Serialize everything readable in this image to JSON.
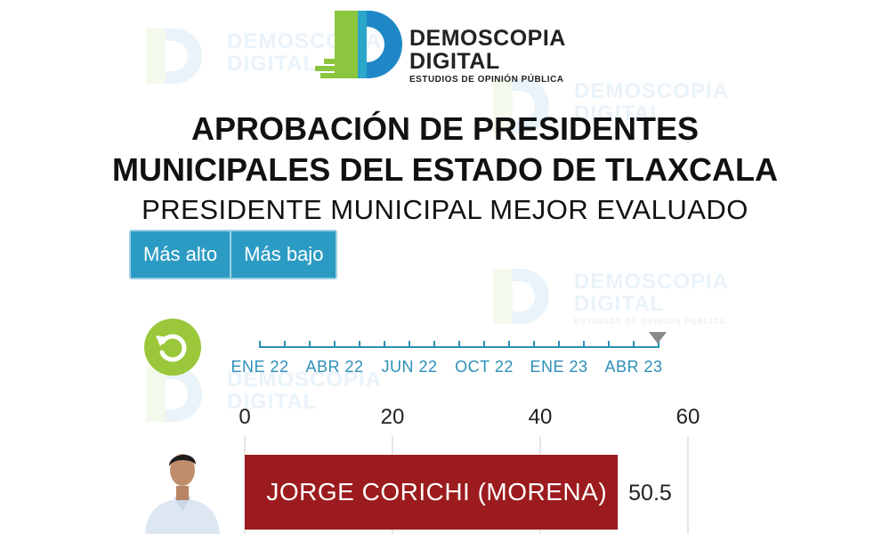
{
  "watermark": {
    "line1": "DEMOSCOPIA",
    "line2": "DIGITAL",
    "line3": "ESTUDIOS DE OPINIÓN PÚBLICA"
  },
  "logo": {
    "line1": "DEMOSCOPIA",
    "line2": "DIGITAL",
    "subtitle": "ESTUDIOS DE OPINIÓN PÚBLICA",
    "colors": {
      "green": "#8cc63f",
      "blue": "#1e88c7",
      "teal": "#2aa7c9"
    }
  },
  "title": {
    "line1": "APROBACIÓN DE PRESIDENTES",
    "line2": "MUNICIPALES DEL ESTADO DE TLAXCALA"
  },
  "subtitle": "PRESIDENTE MUNICIPAL MEJOR EVALUADO",
  "controls": {
    "buttons": [
      "Más alto",
      "Más bajo"
    ],
    "reset_icon": "reset-arrow-icon",
    "button_color": "#2c9bc3",
    "reset_color": "#9bc83a"
  },
  "timeline": {
    "labels": [
      "ENE 22",
      "ABR 22",
      "JUN 22",
      "OCT 22",
      "ENE 23",
      "ABR 23"
    ],
    "selected": "ABR 23",
    "color": "#2c8fb8"
  },
  "chart_data": {
    "type": "bar",
    "orientation": "horizontal",
    "xlim": [
      0,
      60
    ],
    "ticks": [
      0,
      20,
      40,
      60
    ],
    "categories": [
      "JORGE CORICHI (MORENA)"
    ],
    "values": [
      50.5
    ],
    "value_labels": [
      "50.5"
    ],
    "bar_color": "#9b1b1e",
    "grid": true
  }
}
